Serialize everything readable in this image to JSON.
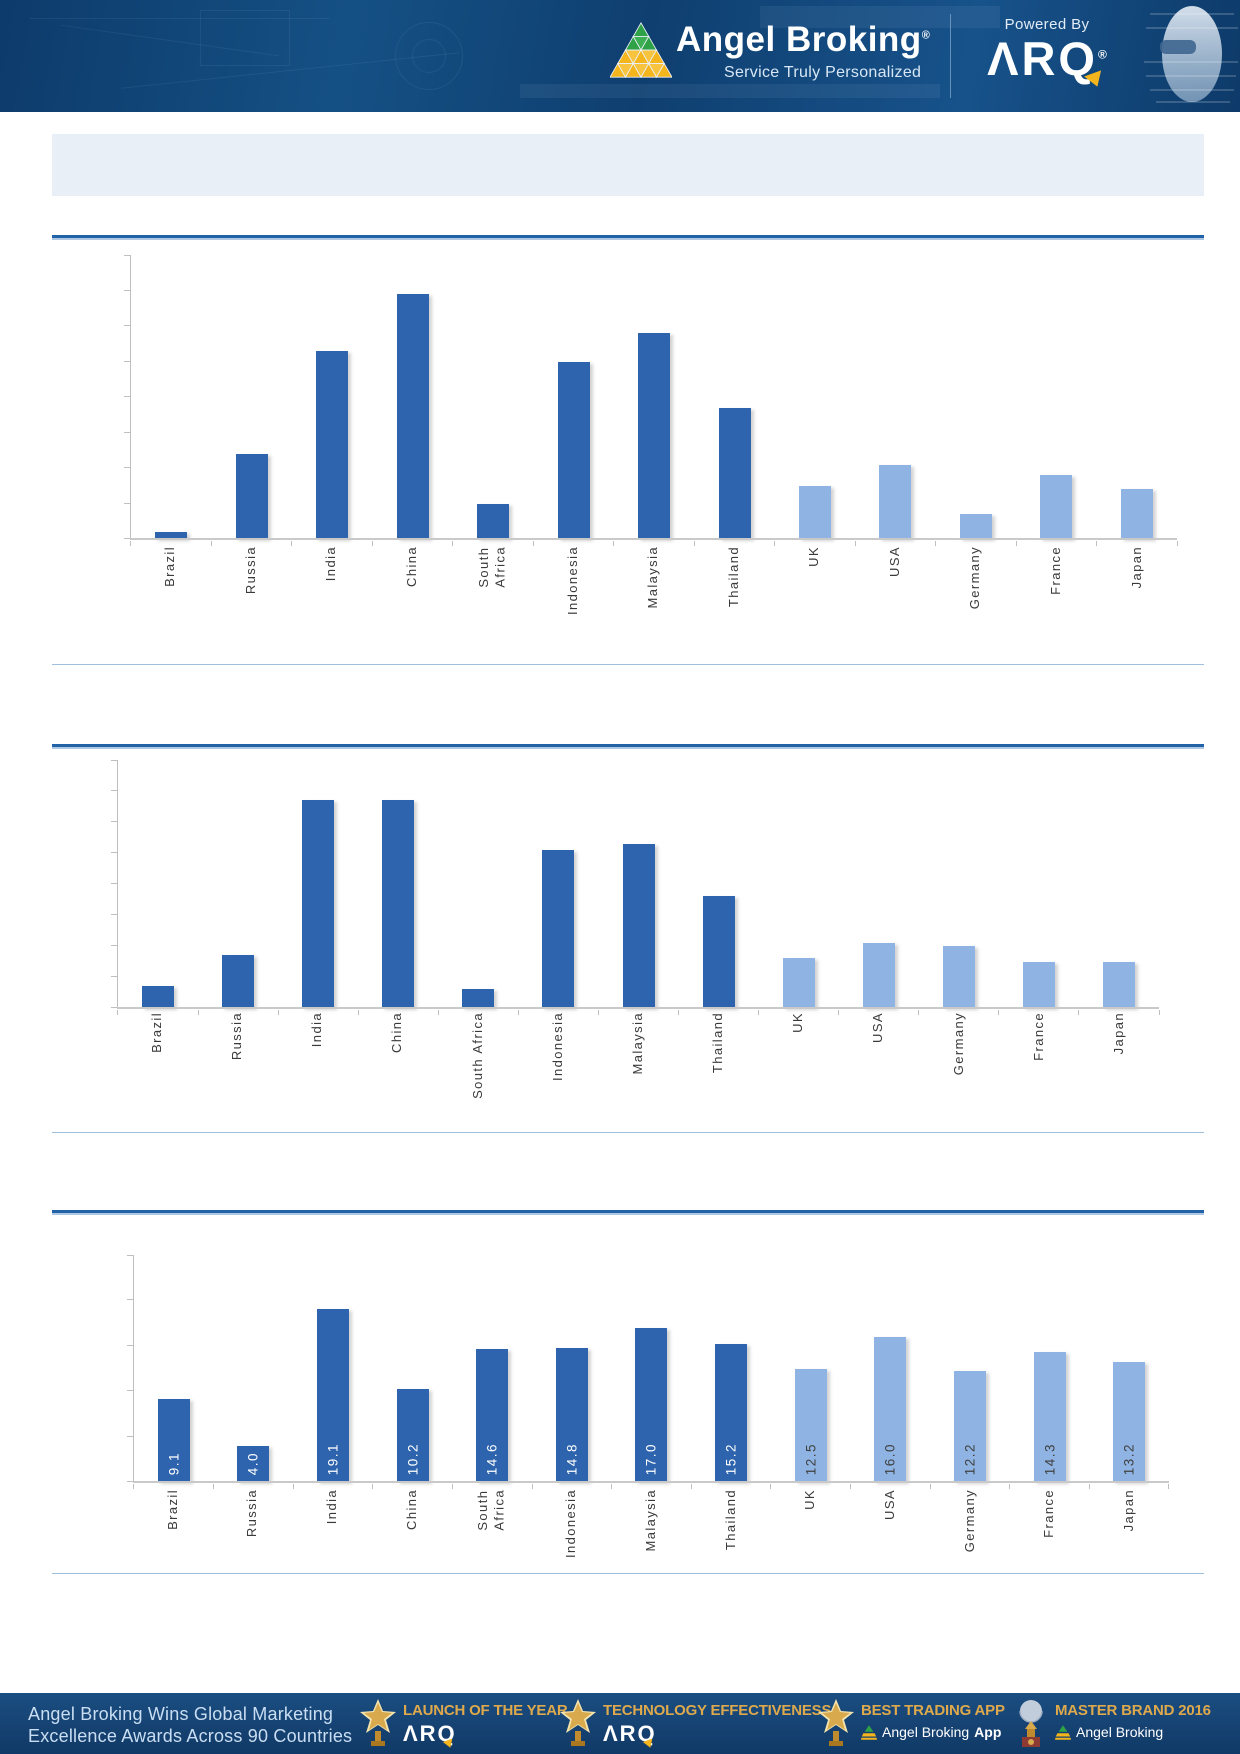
{
  "header": {
    "brand": "Angel Broking",
    "brand_reg": "®",
    "tagline": "Service Truly Personalized",
    "powered_by": "Powered By",
    "arq_logo": "ΛRQ",
    "arq_reg": "®"
  },
  "banner": {
    "title": ""
  },
  "chart_data": [
    {
      "type": "bar",
      "title": "",
      "xlabel": "",
      "ylabel": "",
      "categories": [
        "Brazil",
        "Russia",
        "India",
        "China",
        "South Africa",
        "Indonesia",
        "Malaysia",
        "Thailand",
        "UK",
        "USA",
        "Germany",
        "France",
        "Japan"
      ],
      "axis_labels": [
        "Brazil",
        "Russia",
        "India",
        "China",
        "South\nAfrica",
        "Indonesia",
        "Malaysia",
        "Thailand",
        "UK",
        "USA",
        "Germany",
        "France",
        "Japan"
      ],
      "values": [
        0.2,
        2.4,
        5.3,
        6.9,
        1.0,
        5.0,
        5.8,
        3.7,
        1.5,
        2.1,
        0.7,
        1.8,
        1.4
      ],
      "ylim": [
        0,
        8
      ],
      "ytick_step": 1,
      "grid": false,
      "legend": "none",
      "show_value_labels": false,
      "emerging_color": "#2E64AD",
      "developed_color": "#8FB4E3",
      "developed_from_index": 8
    },
    {
      "type": "bar",
      "title": "",
      "xlabel": "",
      "ylabel": "",
      "categories": [
        "Brazil",
        "Russia",
        "India",
        "China",
        "South Africa",
        "Indonesia",
        "Malaysia",
        "Thailand",
        "UK",
        "USA",
        "Germany",
        "France",
        "Japan"
      ],
      "axis_labels": [
        "Brazil",
        "Russia",
        "India",
        "China",
        "South Africa",
        "Indonesia",
        "Malaysia",
        "Thailand",
        "UK",
        "USA",
        "Germany",
        "France",
        "Japan"
      ],
      "values": [
        0.7,
        1.7,
        6.7,
        6.7,
        0.6,
        5.1,
        5.3,
        3.6,
        1.6,
        2.1,
        2.0,
        1.5,
        1.5
      ],
      "ylim": [
        0,
        8
      ],
      "ytick_step": 1,
      "grid": false,
      "legend": "none",
      "show_value_labels": false,
      "emerging_color": "#2E64AD",
      "developed_color": "#8FB4E3",
      "developed_from_index": 8
    },
    {
      "type": "bar",
      "title": "",
      "xlabel": "",
      "ylabel": "",
      "categories": [
        "Brazil",
        "Russia",
        "India",
        "China",
        "South Africa",
        "Indonesia",
        "Malaysia",
        "Thailand",
        "UK",
        "USA",
        "Germany",
        "France",
        "Japan"
      ],
      "axis_labels": [
        "Brazil",
        "Russia",
        "India",
        "China",
        "South\nAfrica",
        "Indonesia",
        "Malaysia",
        "Thailand",
        "UK",
        "USA",
        "Germany",
        "France",
        "Japan"
      ],
      "values": [
        9.1,
        4.0,
        19.1,
        10.2,
        14.6,
        14.8,
        17.0,
        15.2,
        12.5,
        16.0,
        12.2,
        14.3,
        13.2
      ],
      "ylim": [
        0,
        25
      ],
      "ytick_step": 5,
      "grid": false,
      "legend": "none",
      "show_value_labels": true,
      "value_label_color_on_dark": "#FFFFFF",
      "value_label_color_on_light": "#404040",
      "emerging_color": "#2E64AD",
      "developed_color": "#8FB4E3",
      "developed_from_index": 8
    }
  ],
  "footer": {
    "headline_line1": "Angel Broking Wins Global Marketing",
    "headline_line2": "Excellence Awards Across 90 Countries",
    "awards": [
      {
        "icon": "star-trophy",
        "title": "LAUNCH OF THE YEAR",
        "sub_logo": "ΛRQ",
        "sub_text": "",
        "sub_text_bold": ""
      },
      {
        "icon": "star-trophy",
        "title": "TECHNOLOGY EFFECTIVENESS",
        "sub_logo": "ΛRQ",
        "sub_text": "",
        "sub_text_bold": ""
      },
      {
        "icon": "star-trophy",
        "title": "BEST TRADING APP",
        "sub_logo": "",
        "sub_text": "Angel Broking",
        "sub_text_bold": "App"
      },
      {
        "icon": "globe-trophy",
        "title": "MASTER BRAND 2016",
        "sub_logo": "",
        "sub_text": "Angel Broking",
        "sub_text_bold": ""
      }
    ]
  }
}
